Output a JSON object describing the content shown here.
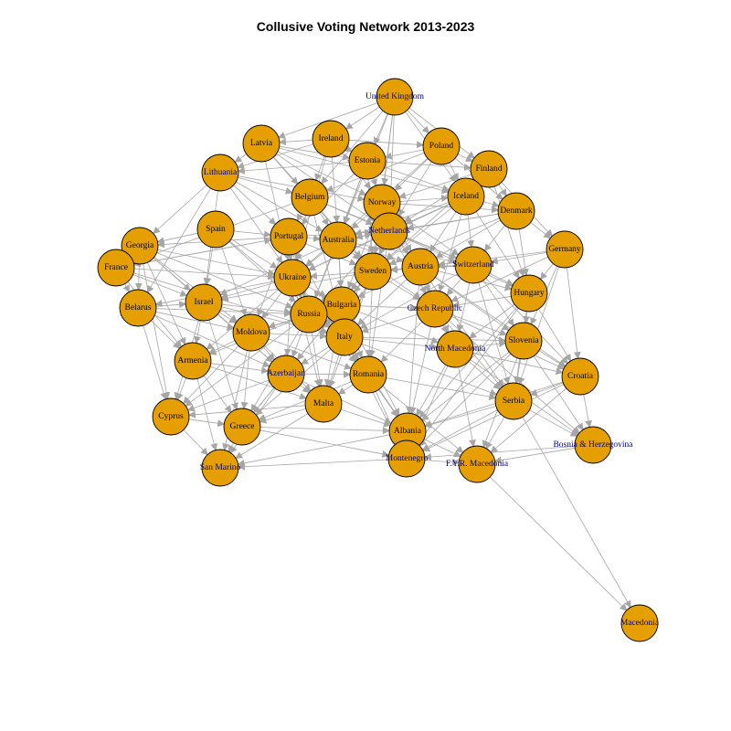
{
  "title": "Collusive Voting Network 2013-2023",
  "colors": {
    "node_fill": "#e69f00",
    "node_stroke": "#000000",
    "edge": "#a6a6a6",
    "label_on_node": "#000000",
    "label_overflow": "#000080",
    "background": "#ffffff"
  },
  "nodes": [
    {
      "id": "United Kingdom",
      "label": "United Kingdom"
    },
    {
      "id": "Ireland",
      "label": "Ireland"
    },
    {
      "id": "Latvia",
      "label": "Latvia"
    },
    {
      "id": "Poland",
      "label": "Poland"
    },
    {
      "id": "Estonia",
      "label": "Estonia"
    },
    {
      "id": "Finland",
      "label": "Finland"
    },
    {
      "id": "Lithuania",
      "label": "Lithuania"
    },
    {
      "id": "Belgium",
      "label": "Belgium"
    },
    {
      "id": "Norway",
      "label": "Norway"
    },
    {
      "id": "Iceland",
      "label": "Iceland"
    },
    {
      "id": "Denmark",
      "label": "Denmark"
    },
    {
      "id": "Spain",
      "label": "Spain"
    },
    {
      "id": "Portugal",
      "label": "Portugal"
    },
    {
      "id": "Australia",
      "label": "Australia"
    },
    {
      "id": "Netherlands",
      "label": "Netherlands"
    },
    {
      "id": "Georgia",
      "label": "Georgia"
    },
    {
      "id": "Germany",
      "label": "Germany"
    },
    {
      "id": "France",
      "label": "France"
    },
    {
      "id": "Switzerland",
      "label": "Switzerland"
    },
    {
      "id": "Austria",
      "label": "Austria"
    },
    {
      "id": "Sweden",
      "label": "Sweden"
    },
    {
      "id": "Ukraine",
      "label": "Ukraine"
    },
    {
      "id": "Belarus",
      "label": "Belarus"
    },
    {
      "id": "Israel",
      "label": "Israel"
    },
    {
      "id": "Hungary",
      "label": "Hungary"
    },
    {
      "id": "Bulgaria",
      "label": "Bulgaria"
    },
    {
      "id": "Czech Republic",
      "label": "Czech Republic"
    },
    {
      "id": "Russia",
      "label": "Russia"
    },
    {
      "id": "Moldova",
      "label": "Moldova"
    },
    {
      "id": "Italy",
      "label": "Italy"
    },
    {
      "id": "North Macedonia",
      "label": "North Macedonia"
    },
    {
      "id": "Slovenia",
      "label": "Slovenia"
    },
    {
      "id": "Armenia",
      "label": "Armenia"
    },
    {
      "id": "Azerbaijan",
      "label": "Azerbaijan"
    },
    {
      "id": "Romania",
      "label": "Romania"
    },
    {
      "id": "Croatia",
      "label": "Croatia"
    },
    {
      "id": "Malta",
      "label": "Malta"
    },
    {
      "id": "Serbia",
      "label": "Serbia"
    },
    {
      "id": "Cyprus",
      "label": "Cyprus"
    },
    {
      "id": "Greece",
      "label": "Greece"
    },
    {
      "id": "Albania",
      "label": "Albania"
    },
    {
      "id": "Bosnia & Herzegovina",
      "label": "Bosnia & Herzegovina"
    },
    {
      "id": "Montenegro",
      "label": "Montenegro"
    },
    {
      "id": "F.Y.R. Macedonia",
      "label": "F.Y.R. Macedonia"
    },
    {
      "id": "San Marino",
      "label": "San Marino"
    },
    {
      "id": "Macedonia",
      "label": "Macedonia"
    }
  ],
  "edges": [
    [
      "United Kingdom",
      "Ireland"
    ],
    [
      "United Kingdom",
      "Poland"
    ],
    [
      "United Kingdom",
      "Estonia"
    ],
    [
      "United Kingdom",
      "Netherlands"
    ],
    [
      "United Kingdom",
      "Iceland"
    ],
    [
      "United Kingdom",
      "Latvia"
    ],
    [
      "United Kingdom",
      "Belgium"
    ],
    [
      "United Kingdom",
      "Norway"
    ],
    [
      "United Kingdom",
      "Australia"
    ],
    [
      "United Kingdom",
      "Sweden"
    ],
    [
      "United Kingdom",
      "Finland"
    ],
    [
      "Ireland",
      "Latvia"
    ],
    [
      "Ireland",
      "Lithuania"
    ],
    [
      "Ireland",
      "Estonia"
    ],
    [
      "Ireland",
      "Norway"
    ],
    [
      "Ireland",
      "Australia"
    ],
    [
      "Ireland",
      "Ukraine"
    ],
    [
      "Ireland",
      "Poland"
    ],
    [
      "Ireland",
      "Belgium"
    ],
    [
      "Latvia",
      "Lithuania"
    ],
    [
      "Latvia",
      "Estonia"
    ],
    [
      "Latvia",
      "Norway"
    ],
    [
      "Latvia",
      "Sweden"
    ],
    [
      "Latvia",
      "Ukraine"
    ],
    [
      "Latvia",
      "Iceland"
    ],
    [
      "Latvia",
      "Belgium"
    ],
    [
      "Latvia",
      "Netherlands"
    ],
    [
      "Poland",
      "Estonia"
    ],
    [
      "Poland",
      "Finland"
    ],
    [
      "Poland",
      "Iceland"
    ],
    [
      "Poland",
      "Ukraine"
    ],
    [
      "Poland",
      "Netherlands"
    ],
    [
      "Poland",
      "Denmark"
    ],
    [
      "Poland",
      "Norway"
    ],
    [
      "Poland",
      "Belgium"
    ],
    [
      "Estonia",
      "Finland"
    ],
    [
      "Estonia",
      "Lithuania"
    ],
    [
      "Estonia",
      "Norway"
    ],
    [
      "Estonia",
      "Sweden"
    ],
    [
      "Estonia",
      "Australia"
    ],
    [
      "Estonia",
      "Iceland"
    ],
    [
      "Estonia",
      "Russia"
    ],
    [
      "Estonia",
      "Portugal"
    ],
    [
      "Finland",
      "Iceland"
    ],
    [
      "Finland",
      "Denmark"
    ],
    [
      "Finland",
      "Sweden"
    ],
    [
      "Finland",
      "Norway"
    ],
    [
      "Finland",
      "Netherlands"
    ],
    [
      "Finland",
      "Germany"
    ],
    [
      "Finland",
      "Hungary"
    ],
    [
      "Lithuania",
      "Georgia"
    ],
    [
      "Lithuania",
      "Ukraine"
    ],
    [
      "Lithuania",
      "Belarus"
    ],
    [
      "Lithuania",
      "Portugal"
    ],
    [
      "Lithuania",
      "Australia"
    ],
    [
      "Lithuania",
      "Israel"
    ],
    [
      "Lithuania",
      "Belgium"
    ],
    [
      "Lithuania",
      "Norway"
    ],
    [
      "Belgium",
      "Netherlands"
    ],
    [
      "Belgium",
      "Portugal"
    ],
    [
      "Belgium",
      "Australia"
    ],
    [
      "Belgium",
      "Sweden"
    ],
    [
      "Belgium",
      "Ukraine"
    ],
    [
      "Belgium",
      "Italy"
    ],
    [
      "Belgium",
      "Switzerland"
    ],
    [
      "Belgium",
      "France"
    ],
    [
      "Norway",
      "Iceland"
    ],
    [
      "Norway",
      "Denmark"
    ],
    [
      "Norway",
      "Sweden"
    ],
    [
      "Norway",
      "Netherlands"
    ],
    [
      "Norway",
      "Australia"
    ],
    [
      "Norway",
      "Austria"
    ],
    [
      "Norway",
      "Switzerland"
    ],
    [
      "Norway",
      "Italy"
    ],
    [
      "Norway",
      "Bulgaria"
    ],
    [
      "Iceland",
      "Denmark"
    ],
    [
      "Iceland",
      "Sweden"
    ],
    [
      "Iceland",
      "Netherlands"
    ],
    [
      "Iceland",
      "Switzerland"
    ],
    [
      "Iceland",
      "Hungary"
    ],
    [
      "Iceland",
      "Austria"
    ],
    [
      "Iceland",
      "Australia"
    ],
    [
      "Iceland",
      "Ukraine"
    ],
    [
      "Iceland",
      "Czech Republic"
    ],
    [
      "Denmark",
      "Sweden"
    ],
    [
      "Denmark",
      "Germany"
    ],
    [
      "Denmark",
      "Netherlands"
    ],
    [
      "Denmark",
      "Switzerland"
    ],
    [
      "Denmark",
      "Hungary"
    ],
    [
      "Denmark",
      "Austria"
    ],
    [
      "Denmark",
      "Australia"
    ],
    [
      "Spain",
      "Portugal"
    ],
    [
      "Spain",
      "Ukraine"
    ],
    [
      "Spain",
      "Italy"
    ],
    [
      "Spain",
      "Georgia"
    ],
    [
      "Spain",
      "Russia"
    ],
    [
      "Spain",
      "Israel"
    ],
    [
      "Spain",
      "Moldova"
    ],
    [
      "Portugal",
      "Australia"
    ],
    [
      "Portugal",
      "Ukraine"
    ],
    [
      "Portugal",
      "Sweden"
    ],
    [
      "Portugal",
      "Russia"
    ],
    [
      "Portugal",
      "Italy"
    ],
    [
      "Portugal",
      "Georgia"
    ],
    [
      "Portugal",
      "France"
    ],
    [
      "Portugal",
      "Moldova"
    ],
    [
      "Portugal",
      "Netherlands"
    ],
    [
      "Australia",
      "Netherlands"
    ],
    [
      "Australia",
      "Sweden"
    ],
    [
      "Australia",
      "Ukraine"
    ],
    [
      "Australia",
      "Russia"
    ],
    [
      "Australia",
      "Bulgaria"
    ],
    [
      "Australia",
      "Italy"
    ],
    [
      "Australia",
      "Austria"
    ],
    [
      "Australia",
      "Switzerland"
    ],
    [
      "Australia",
      "Israel"
    ],
    [
      "Australia",
      "Czech Republic"
    ],
    [
      "Netherlands",
      "Sweden"
    ],
    [
      "Netherlands",
      "Austria"
    ],
    [
      "Netherlands",
      "Switzerland"
    ],
    [
      "Netherlands",
      "Bulgaria"
    ],
    [
      "Netherlands",
      "Italy"
    ],
    [
      "Netherlands",
      "Czech Republic"
    ],
    [
      "Netherlands",
      "Hungary"
    ],
    [
      "Netherlands",
      "Ukraine"
    ],
    [
      "Netherlands",
      "Russia"
    ],
    [
      "Netherlands",
      "Romania"
    ],
    [
      "Georgia",
      "France"
    ],
    [
      "Georgia",
      "Belarus"
    ],
    [
      "Georgia",
      "Ukraine"
    ],
    [
      "Georgia",
      "Armenia"
    ],
    [
      "Georgia",
      "Israel"
    ],
    [
      "Georgia",
      "Moldova"
    ],
    [
      "Georgia",
      "Russia"
    ],
    [
      "Georgia",
      "Azerbaijan"
    ],
    [
      "Georgia",
      "Cyprus"
    ],
    [
      "Germany",
      "Switzerland"
    ],
    [
      "Germany",
      "Hungary"
    ],
    [
      "Germany",
      "Croatia"
    ],
    [
      "Germany",
      "Slovenia"
    ],
    [
      "Germany",
      "Austria"
    ],
    [
      "Germany",
      "Czech Republic"
    ],
    [
      "Germany",
      "Serbia"
    ],
    [
      "France",
      "Belarus"
    ],
    [
      "France",
      "Ukraine"
    ],
    [
      "France",
      "Armenia"
    ],
    [
      "France",
      "Israel"
    ],
    [
      "France",
      "Portugal"
    ],
    [
      "France",
      "Italy"
    ],
    [
      "Switzerland",
      "Austria"
    ],
    [
      "Switzerland",
      "Hungary"
    ],
    [
      "Switzerland",
      "Czech Republic"
    ],
    [
      "Switzerland",
      "Slovenia"
    ],
    [
      "Switzerland",
      "Sweden"
    ],
    [
      "Switzerland",
      "North Macedonia"
    ],
    [
      "Switzerland",
      "Serbia"
    ],
    [
      "Switzerland",
      "Croatia"
    ],
    [
      "Switzerland",
      "Italy"
    ],
    [
      "Austria",
      "Sweden"
    ],
    [
      "Austria",
      "Hungary"
    ],
    [
      "Austria",
      "Czech Republic"
    ],
    [
      "Austria",
      "Slovenia"
    ],
    [
      "Austria",
      "Bulgaria"
    ],
    [
      "Austria",
      "Italy"
    ],
    [
      "Austria",
      "North Macedonia"
    ],
    [
      "Austria",
      "Serbia"
    ],
    [
      "Austria",
      "Croatia"
    ],
    [
      "Austria",
      "Albania"
    ],
    [
      "Sweden",
      "Ukraine"
    ],
    [
      "Sweden",
      "Bulgaria"
    ],
    [
      "Sweden",
      "Russia"
    ],
    [
      "Sweden",
      "Italy"
    ],
    [
      "Sweden",
      "Czech Republic"
    ],
    [
      "Sweden",
      "Romania"
    ],
    [
      "Sweden",
      "Israel"
    ],
    [
      "Sweden",
      "Malta"
    ],
    [
      "Ukraine",
      "Russia"
    ],
    [
      "Ukraine",
      "Bulgaria"
    ],
    [
      "Ukraine",
      "Belarus"
    ],
    [
      "Ukraine",
      "Israel"
    ],
    [
      "Ukraine",
      "Moldova"
    ],
    [
      "Ukraine",
      "Azerbaijan"
    ],
    [
      "Ukraine",
      "Armenia"
    ],
    [
      "Ukraine",
      "Italy"
    ],
    [
      "Ukraine",
      "Romania"
    ],
    [
      "Ukraine",
      "Malta"
    ],
    [
      "Belarus",
      "Israel"
    ],
    [
      "Belarus",
      "Armenia"
    ],
    [
      "Belarus",
      "Moldova"
    ],
    [
      "Belarus",
      "Russia"
    ],
    [
      "Belarus",
      "Azerbaijan"
    ],
    [
      "Belarus",
      "Cyprus"
    ],
    [
      "Israel",
      "Russia"
    ],
    [
      "Israel",
      "Moldova"
    ],
    [
      "Israel",
      "Armenia"
    ],
    [
      "Israel",
      "Azerbaijan"
    ],
    [
      "Israel",
      "Cyprus"
    ],
    [
      "Israel",
      "Greece"
    ],
    [
      "Israel",
      "Italy"
    ],
    [
      "Hungary",
      "Czech Republic"
    ],
    [
      "Hungary",
      "Slovenia"
    ],
    [
      "Hungary",
      "North Macedonia"
    ],
    [
      "Hungary",
      "Serbia"
    ],
    [
      "Hungary",
      "Croatia"
    ],
    [
      "Hungary",
      "Albania"
    ],
    [
      "Hungary",
      "Montenegro"
    ],
    [
      "Bulgaria",
      "Russia"
    ],
    [
      "Bulgaria",
      "Italy"
    ],
    [
      "Bulgaria",
      "Czech Republic"
    ],
    [
      "Bulgaria",
      "Romania"
    ],
    [
      "Bulgaria",
      "Moldova"
    ],
    [
      "Bulgaria",
      "Azerbaijan"
    ],
    [
      "Bulgaria",
      "Malta"
    ],
    [
      "Bulgaria",
      "Greece"
    ],
    [
      "Bulgaria",
      "Albania"
    ],
    [
      "Bulgaria",
      "North Macedonia"
    ],
    [
      "Czech Republic",
      "Slovenia"
    ],
    [
      "Czech Republic",
      "North Macedonia"
    ],
    [
      "Czech Republic",
      "Italy"
    ],
    [
      "Czech Republic",
      "Serbia"
    ],
    [
      "Czech Republic",
      "Croatia"
    ],
    [
      "Czech Republic",
      "Romania"
    ],
    [
      "Czech Republic",
      "Albania"
    ],
    [
      "Czech Republic",
      "Bosnia & Herzegovina"
    ],
    [
      "Russia",
      "Moldova"
    ],
    [
      "Russia",
      "Italy"
    ],
    [
      "Russia",
      "Azerbaijan"
    ],
    [
      "Russia",
      "Armenia"
    ],
    [
      "Russia",
      "Romania"
    ],
    [
      "Russia",
      "Malta"
    ],
    [
      "Russia",
      "Greece"
    ],
    [
      "Russia",
      "Cyprus"
    ],
    [
      "Moldova",
      "Armenia"
    ],
    [
      "Moldova",
      "Azerbaijan"
    ],
    [
      "Moldova",
      "Italy"
    ],
    [
      "Moldova",
      "Romania"
    ],
    [
      "Moldova",
      "Malta"
    ],
    [
      "Moldova",
      "Greece"
    ],
    [
      "Moldova",
      "Cyprus"
    ],
    [
      "Moldova",
      "San Marino"
    ],
    [
      "Italy",
      "Romania"
    ],
    [
      "Italy",
      "Azerbaijan"
    ],
    [
      "Italy",
      "Malta"
    ],
    [
      "Italy",
      "Albania"
    ],
    [
      "Italy",
      "Greece"
    ],
    [
      "Italy",
      "North Macedonia"
    ],
    [
      "Italy",
      "Serbia"
    ],
    [
      "Italy",
      "Montenegro"
    ],
    [
      "Italy",
      "Slovenia"
    ],
    [
      "North Macedonia",
      "Slovenia"
    ],
    [
      "North Macedonia",
      "Serbia"
    ],
    [
      "North Macedonia",
      "Croatia"
    ],
    [
      "North Macedonia",
      "Albania"
    ],
    [
      "North Macedonia",
      "Montenegro"
    ],
    [
      "North Macedonia",
      "F.Y.R. Macedonia"
    ],
    [
      "North Macedonia",
      "Bosnia & Herzegovina"
    ],
    [
      "Slovenia",
      "Croatia"
    ],
    [
      "Slovenia",
      "Serbia"
    ],
    [
      "Slovenia",
      "Bosnia & Herzegovina"
    ],
    [
      "Slovenia",
      "F.Y.R. Macedonia"
    ],
    [
      "Slovenia",
      "Montenegro"
    ],
    [
      "Slovenia",
      "Albania"
    ],
    [
      "Armenia",
      "Cyprus"
    ],
    [
      "Armenia",
      "Greece"
    ],
    [
      "Armenia",
      "Azerbaijan"
    ],
    [
      "Armenia",
      "Malta"
    ],
    [
      "Armenia",
      "San Marino"
    ],
    [
      "Azerbaijan",
      "Malta"
    ],
    [
      "Azerbaijan",
      "Romania"
    ],
    [
      "Azerbaijan",
      "Greece"
    ],
    [
      "Azerbaijan",
      "Cyprus"
    ],
    [
      "Azerbaijan",
      "Albania"
    ],
    [
      "Azerbaijan",
      "San Marino"
    ],
    [
      "Romania",
      "Malta"
    ],
    [
      "Romania",
      "Albania"
    ],
    [
      "Romania",
      "Montenegro"
    ],
    [
      "Romania",
      "Greece"
    ],
    [
      "Romania",
      "Serbia"
    ],
    [
      "Romania",
      "F.Y.R. Macedonia"
    ],
    [
      "Croatia",
      "Serbia"
    ],
    [
      "Croatia",
      "Bosnia & Herzegovina"
    ],
    [
      "Croatia",
      "F.Y.R. Macedonia"
    ],
    [
      "Croatia",
      "Montenegro"
    ],
    [
      "Croatia",
      "Albania"
    ],
    [
      "Malta",
      "Greece"
    ],
    [
      "Malta",
      "Albania"
    ],
    [
      "Malta",
      "Cyprus"
    ],
    [
      "Malta",
      "San Marino"
    ],
    [
      "Serbia",
      "Bosnia & Herzegovina"
    ],
    [
      "Serbia",
      "F.Y.R. Macedonia"
    ],
    [
      "Serbia",
      "Montenegro"
    ],
    [
      "Serbia",
      "Albania"
    ],
    [
      "Serbia",
      "Macedonia"
    ],
    [
      "Cyprus",
      "Greece"
    ],
    [
      "Cyprus",
      "San Marino"
    ],
    [
      "Greece",
      "Albania"
    ],
    [
      "Greece",
      "San Marino"
    ],
    [
      "Greece",
      "Montenegro"
    ],
    [
      "Albania",
      "Montenegro"
    ],
    [
      "Albania",
      "F.Y.R. Macedonia"
    ],
    [
      "Albania",
      "San Marino"
    ],
    [
      "Bosnia & Herzegovina",
      "F.Y.R. Macedonia"
    ],
    [
      "Bosnia & Herzegovina",
      "Montenegro"
    ],
    [
      "Montenegro",
      "F.Y.R. Macedonia"
    ],
    [
      "Montenegro",
      "San Marino"
    ],
    [
      "F.Y.R. Macedonia",
      "Macedonia"
    ]
  ]
}
